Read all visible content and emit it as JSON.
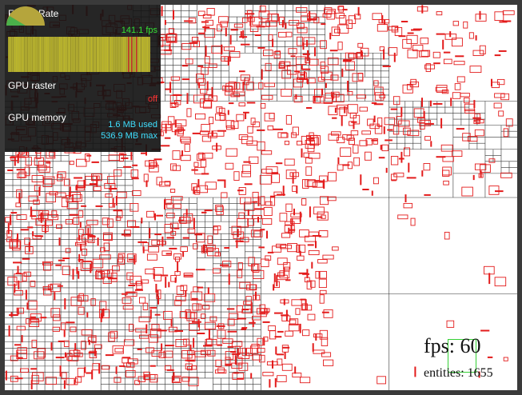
{
  "hud": {
    "frame_rate_label": "Frame Rate",
    "frame_rate_value": "141.1 fps",
    "gpu_raster_label": "GPU raster",
    "gpu_raster_value": "off",
    "gpu_memory_label": "GPU memory",
    "gpu_memory_used": "1.6 MB used",
    "gpu_memory_max": "536.9 MB max"
  },
  "overlay": {
    "fps_text": "fps: 60",
    "entities_text": "entities: 1655"
  },
  "colors": {
    "entity": "#e31b1b",
    "grid": "#333333",
    "fps_green": "#35e135",
    "mem_cyan": "#3fe0ff",
    "raster_red": "#ff3333"
  }
}
